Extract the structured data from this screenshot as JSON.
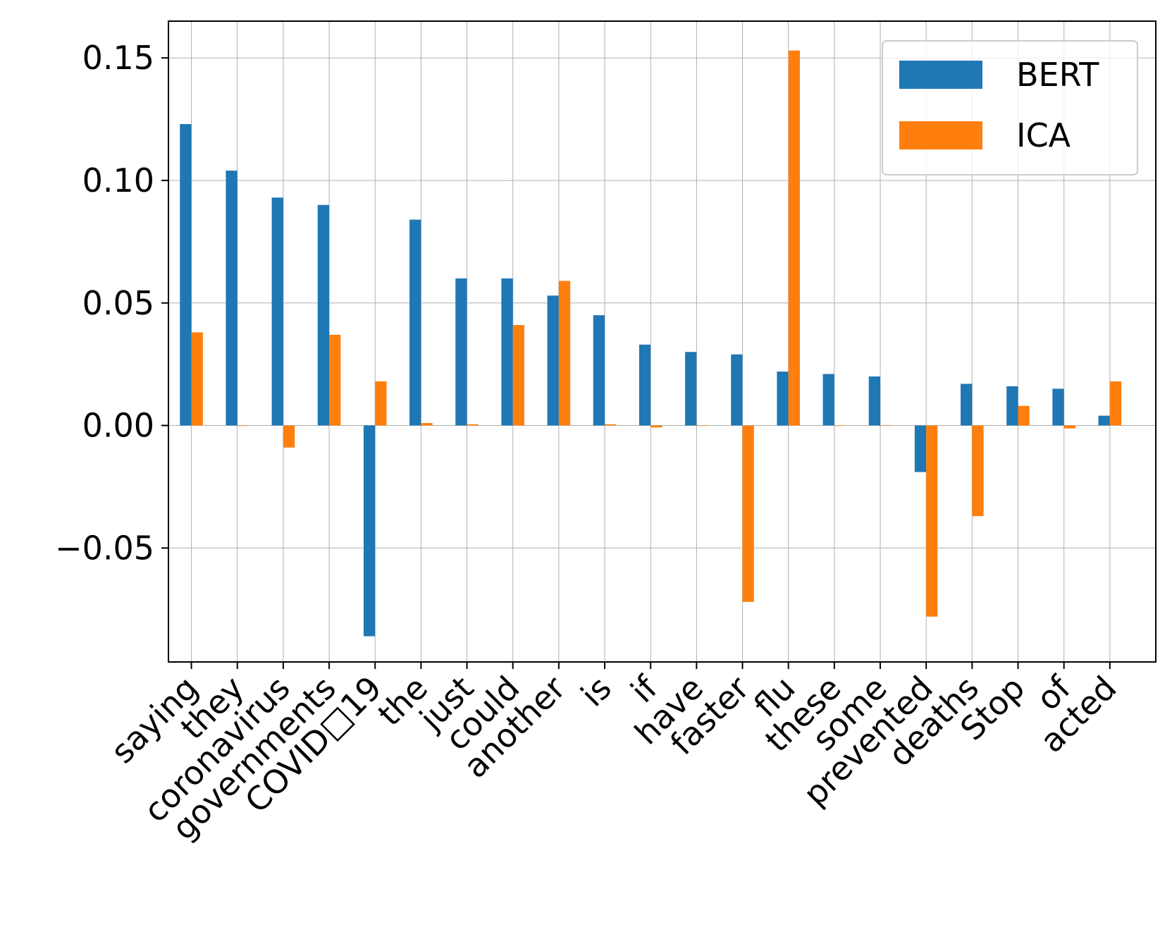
{
  "chart_data": {
    "type": "bar",
    "title": "",
    "xlabel": "",
    "ylabel": "",
    "categories": [
      "saying",
      "they",
      "coronavirus",
      "governments",
      "COVID□19",
      "the",
      "just",
      "could",
      "another",
      "is",
      "if",
      "have",
      "faster",
      "flu",
      "these",
      "some",
      "prevented",
      "deaths",
      "Stop",
      "of",
      "acted"
    ],
    "series": [
      {
        "name": "BERT",
        "color": "#1f77b4",
        "values": [
          0.123,
          0.104,
          0.093,
          0.09,
          -0.086,
          0.084,
          0.06,
          0.06,
          0.053,
          0.045,
          0.033,
          0.03,
          0.029,
          0.022,
          0.021,
          0.02,
          -0.019,
          0.017,
          0.016,
          0.015,
          0.004
        ]
      },
      {
        "name": "ICA",
        "color": "#ff7f0e",
        "values": [
          0.038,
          0.0,
          -0.009,
          0.037,
          0.018,
          0.001,
          0.0005,
          0.041,
          0.059,
          0.0005,
          -0.0008,
          0.0,
          -0.072,
          0.153,
          0.0,
          0.0,
          -0.078,
          -0.037,
          0.008,
          -0.0012,
          0.018
        ]
      }
    ],
    "ylim": [
      -0.0965,
      0.165
    ],
    "yticks": [
      -0.05,
      0.0,
      0.05,
      0.1,
      0.15
    ],
    "ytick_labels": [
      "−0.05",
      "0.00",
      "0.05",
      "0.10",
      "0.15"
    ],
    "grid": true,
    "legend_position": "top-right"
  }
}
